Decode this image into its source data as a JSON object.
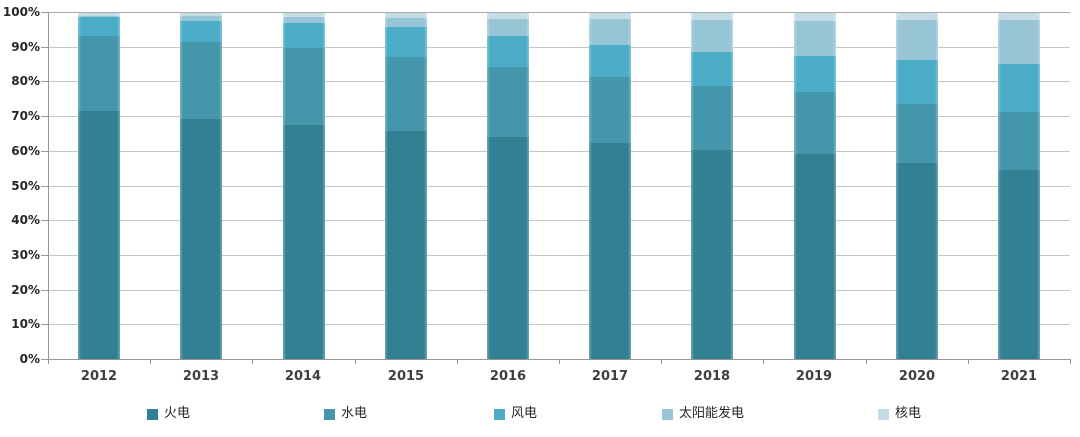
{
  "chart_data": {
    "type": "bar",
    "variant": "stacked-100-percent",
    "unit": "%",
    "title": "",
    "xlabel": "",
    "ylabel": "",
    "categories": [
      "2012",
      "2013",
      "2014",
      "2015",
      "2016",
      "2017",
      "2018",
      "2019",
      "2020",
      "2021"
    ],
    "series": [
      {
        "name": "火电",
        "color": "#337F93",
        "values": [
          71.5,
          69.1,
          67.4,
          65.7,
          64.0,
          62.2,
          60.2,
          59.2,
          56.6,
          54.6
        ]
      },
      {
        "name": "水电",
        "color": "#4497AB",
        "values": [
          21.7,
          22.4,
          22.2,
          21.2,
          20.2,
          19.2,
          18.5,
          17.7,
          16.8,
          16.5
        ]
      },
      {
        "name": "风电",
        "color": "#4BACC8",
        "values": [
          5.3,
          6.0,
          7.1,
          8.7,
          9.0,
          9.2,
          9.7,
          10.4,
          12.8,
          13.8
        ]
      },
      {
        "name": "太阳能发电",
        "color": "#97C5D5",
        "values": [
          0.3,
          1.3,
          1.8,
          2.8,
          4.7,
          7.3,
          9.2,
          10.1,
          11.5,
          12.9
        ]
      },
      {
        "name": "核电",
        "color": "#C3DCE6",
        "values": [
          1.1,
          1.2,
          1.5,
          1.7,
          2.0,
          2.0,
          2.4,
          2.4,
          2.3,
          2.2
        ]
      }
    ],
    "yticks": [
      "0%",
      "10%",
      "20%",
      "30%",
      "40%",
      "50%",
      "60%",
      "70%",
      "80%",
      "90%",
      "100%"
    ],
    "ylim": [
      0,
      100
    ],
    "grid": true,
    "legend_position": "bottom",
    "axis_color": "#969696",
    "gridline_color": "#C6C6C6",
    "label_color": "#262626"
  }
}
